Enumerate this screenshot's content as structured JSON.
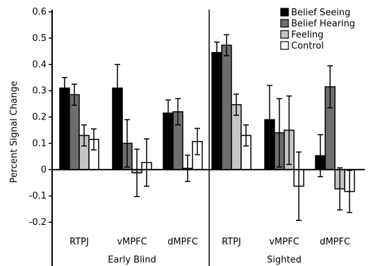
{
  "chart_data": {
    "type": "bar",
    "ylabel": "Percent Signal Change",
    "ylim": [
      -0.2,
      0.6
    ],
    "yticks": [
      "0.6",
      "0.5",
      "0.4",
      "0.3",
      "0.2",
      "0.1",
      "0",
      "-0.1",
      "-0.2"
    ],
    "ytick_values": [
      0.6,
      0.5,
      0.4,
      0.3,
      0.2,
      0.1,
      0,
      -0.1,
      -0.2
    ],
    "grid": false,
    "legend_position": "top-right",
    "groups": [
      {
        "name": "Early Blind",
        "categories": [
          {
            "label": "RTPJ",
            "values": [
              0.31,
              0.285,
              0.13,
              0.115
            ],
            "errors": [
              0.04,
              0.04,
              0.04,
              0.04
            ]
          },
          {
            "label": "vMPFC",
            "values": [
              0.31,
              0.1,
              -0.012,
              0.027
            ],
            "errors": [
              0.09,
              0.09,
              0.09,
              0.09
            ]
          },
          {
            "label": "dMPFC",
            "values": [
              0.215,
              0.22,
              0.005,
              0.107
            ],
            "errors": [
              0.05,
              0.05,
              0.05,
              0.05
            ]
          }
        ]
      },
      {
        "name": "Sighted",
        "categories": [
          {
            "label": "RTPJ",
            "values": [
              0.445,
              0.473,
              0.247,
              0.13
            ],
            "errors": [
              0.04,
              0.04,
              0.04,
              0.04
            ]
          },
          {
            "label": "vMPFC",
            "values": [
              0.19,
              0.14,
              0.15,
              -0.063
            ],
            "errors": [
              0.13,
              0.13,
              0.13,
              0.13
            ]
          },
          {
            "label": "dMPFC",
            "values": [
              0.053,
              0.315,
              -0.073,
              -0.083
            ],
            "errors": [
              0.08,
              0.08,
              0.08,
              0.08
            ]
          }
        ]
      }
    ],
    "series": [
      {
        "name": "Belief Seeing",
        "color": "#000000"
      },
      {
        "name": "Belief Hearing",
        "color": "#6e6e6e"
      },
      {
        "name": "Feeling",
        "color": "#c4c4c4"
      },
      {
        "name": "Control",
        "color": "#ffffff"
      }
    ]
  }
}
